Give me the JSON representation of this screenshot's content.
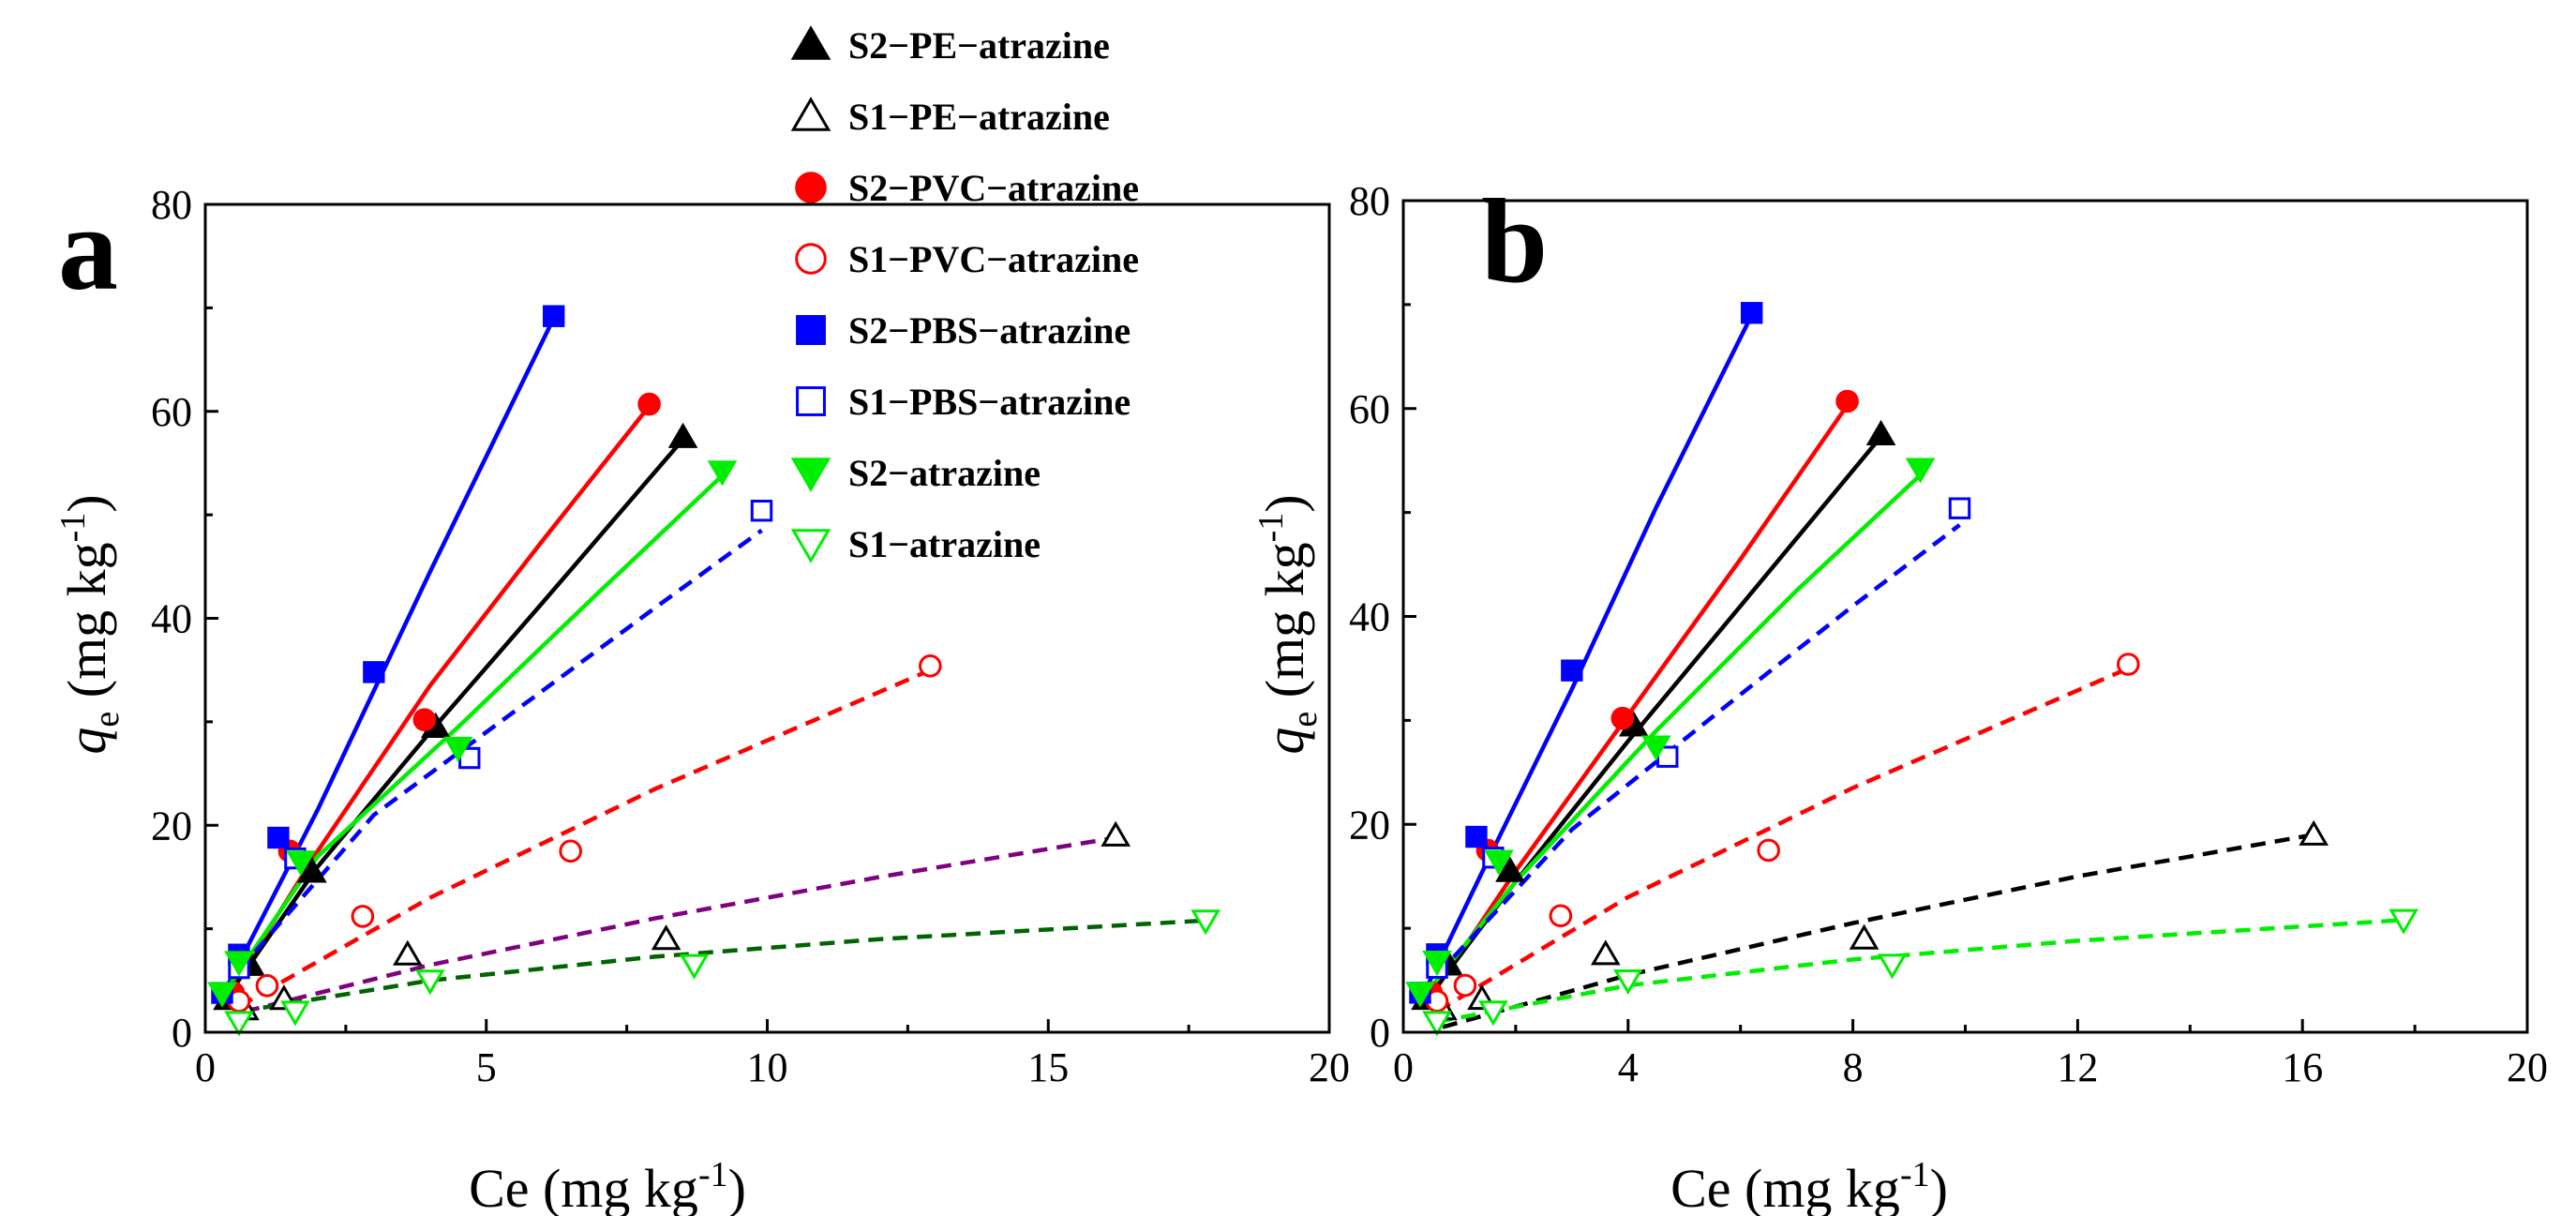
{
  "legend": [
    {
      "label": "S2−PE−atrazine",
      "marker": "triangle-up",
      "filled": true,
      "color": "#000000"
    },
    {
      "label": "S1−PE−atrazine",
      "marker": "triangle-up",
      "filled": false,
      "color": "#000000"
    },
    {
      "label": "S2−PVC−atrazine",
      "marker": "circle",
      "filled": true,
      "color": "#ff0000"
    },
    {
      "label": "S1−PVC−atrazine",
      "marker": "circle",
      "filled": false,
      "color": "#ff0000"
    },
    {
      "label": "S2−PBS−atrazine",
      "marker": "square",
      "filled": true,
      "color": "#0000ff"
    },
    {
      "label": "S1−PBS−atrazine",
      "marker": "square",
      "filled": false,
      "color": "#0000ff"
    },
    {
      "label": "S2−atrazine",
      "marker": "triangle-down",
      "filled": true,
      "color": "#00ee00"
    },
    {
      "label": "S1−atrazine",
      "marker": "triangle-down",
      "filled": false,
      "color": "#00ee00"
    }
  ],
  "chart_data": [
    {
      "type": "scatter",
      "panel": "a",
      "ylabel_italic": "q",
      "ylabel_sub": "e",
      "ylabel_rest": " (mg kg",
      "ylabel_sup": "-1",
      "ylabel_close": ")",
      "xlabel_main": "Ce (mg kg",
      "xlabel_sup": "-1",
      "xlabel_close": ")",
      "xlim": [
        0,
        20
      ],
      "ylim": [
        0,
        80
      ],
      "xticks": [
        0,
        5,
        10,
        15,
        20
      ],
      "xtick_labels": [
        "0",
        "5",
        "10",
        "15",
        "20"
      ],
      "yticks": [
        0,
        20,
        40,
        60,
        80
      ],
      "ytick_labels": [
        "0",
        "20",
        "40",
        "60",
        "80"
      ],
      "grid": false,
      "series": [
        {
          "name": "S2−PE−atrazine",
          "points": [
            [
              0.4,
              3.2
            ],
            [
              0.8,
              6.5
            ],
            [
              1.9,
              15.5
            ],
            [
              4.1,
              29.5
            ],
            [
              8.5,
              57.5
            ]
          ]
        },
        {
          "name": "S1−PE−atrazine",
          "points": [
            [
              0.7,
              2.2
            ],
            [
              1.4,
              3.2
            ],
            [
              3.6,
              7.5
            ],
            [
              8.2,
              9.0
            ],
            [
              16.2,
              19.0
            ]
          ]
        },
        {
          "name": "S2−PVC−atrazine",
          "points": [
            [
              0.5,
              3.8
            ],
            [
              1.5,
              17.5
            ],
            [
              3.9,
              30.2
            ],
            [
              7.9,
              60.7
            ]
          ]
        },
        {
          "name": "S1−PVC−atrazine",
          "points": [
            [
              0.6,
              3.0
            ],
            [
              1.1,
              4.5
            ],
            [
              2.8,
              11.2
            ],
            [
              6.5,
              17.5
            ],
            [
              12.9,
              35.4
            ]
          ]
        },
        {
          "name": "S2−PBS−atrazine",
          "points": [
            [
              0.3,
              3.8
            ],
            [
              0.6,
              7.5
            ],
            [
              1.3,
              18.8
            ],
            [
              3.0,
              34.8
            ],
            [
              6.2,
              69.2
            ]
          ]
        },
        {
          "name": "S1−PBS−atrazine",
          "points": [
            [
              0.6,
              6.2
            ],
            [
              1.6,
              16.8
            ],
            [
              4.7,
              26.5
            ],
            [
              9.9,
              50.4
            ]
          ]
        },
        {
          "name": "S2−atrazine",
          "points": [
            [
              0.3,
              3.8
            ],
            [
              0.6,
              6.8
            ],
            [
              1.7,
              16.5
            ],
            [
              4.5,
              27.5
            ],
            [
              9.2,
              54.2
            ]
          ]
        },
        {
          "name": "S1−atrazine",
          "points": [
            [
              0.6,
              1.0
            ],
            [
              1.6,
              2.0
            ],
            [
              4.0,
              5.0
            ],
            [
              8.7,
              6.5
            ],
            [
              17.8,
              10.8
            ]
          ]
        }
      ],
      "fits": [
        {
          "series": "S2−PBS−atrazine",
          "style": "solid",
          "color": "#0000ff",
          "points": [
            [
              0.3,
              3.5
            ],
            [
              2.0,
              21.5
            ],
            [
              4.0,
              44.5
            ],
            [
              6.2,
              69.0
            ]
          ]
        },
        {
          "series": "S2−PVC−atrazine",
          "style": "solid",
          "color": "#ff0000",
          "points": [
            [
              0.5,
              4.5
            ],
            [
              2.0,
              17.5
            ],
            [
              4.0,
              33.5
            ],
            [
              6.0,
              47.5
            ],
            [
              7.9,
              60.5
            ]
          ]
        },
        {
          "series": "S2−PE−atrazine",
          "style": "solid",
          "color": "#000000",
          "points": [
            [
              0.4,
              3.5
            ],
            [
              2.0,
              16.0
            ],
            [
              4.0,
              29.0
            ],
            [
              6.0,
              41.5
            ],
            [
              8.5,
              57.3
            ]
          ]
        },
        {
          "series": "S2−atrazine",
          "style": "solid",
          "color": "#00ee00",
          "points": [
            [
              0.3,
              3.5
            ],
            [
              2.0,
              17.0
            ],
            [
              4.5,
              29.5
            ],
            [
              7.0,
              42.5
            ],
            [
              9.2,
              53.8
            ]
          ]
        },
        {
          "series": "S1−PBS−atrazine",
          "style": "dashed",
          "color": "#0000ff",
          "points": [
            [
              0.6,
              6.0
            ],
            [
              3.0,
              21.0
            ],
            [
              6.0,
              33.0
            ],
            [
              8.0,
              41.0
            ],
            [
              9.9,
              48.5
            ]
          ]
        },
        {
          "series": "S1−PVC−atrazine",
          "style": "dashed",
          "color": "#ff0000",
          "points": [
            [
              0.6,
              2.5
            ],
            [
              4.0,
              13.0
            ],
            [
              8.0,
              23.5
            ],
            [
              12.9,
              35.0
            ]
          ]
        },
        {
          "series": "S1−PE−atrazine",
          "style": "dashed",
          "color": "#800080",
          "points": [
            [
              0.7,
              2.0
            ],
            [
              4.0,
              6.5
            ],
            [
              8.0,
              11.0
            ],
            [
              12.0,
              15.0
            ],
            [
              16.2,
              18.8
            ]
          ]
        },
        {
          "series": "S1−atrazine",
          "style": "dashed",
          "color": "#006400",
          "points": [
            [
              0.6,
              2.0
            ],
            [
              4.0,
              5.0
            ],
            [
              8.0,
              7.3
            ],
            [
              12.0,
              9.0
            ],
            [
              17.8,
              10.8
            ]
          ]
        }
      ]
    },
    {
      "type": "scatter",
      "panel": "b",
      "ylabel_italic": "q",
      "ylabel_sub": "e",
      "ylabel_rest": " (mg kg",
      "ylabel_sup": "-1",
      "ylabel_close": ")",
      "xlabel_main": "Ce (mg kg",
      "xlabel_sup": "-1",
      "xlabel_close": ")",
      "xlim": [
        0,
        20
      ],
      "ylim": [
        0,
        80
      ],
      "xticks": [
        0,
        4,
        8,
        12,
        16,
        20
      ],
      "xtick_labels": [
        "0",
        "4",
        "8",
        "12",
        "16",
        "20"
      ],
      "yticks": [
        0,
        20,
        40,
        60,
        80
      ],
      "ytick_labels": [
        "0",
        "20",
        "40",
        "60",
        "80"
      ],
      "grid": false,
      "series": [
        {
          "name": "S2−PE−atrazine",
          "points": [
            [
              0.4,
              3.2
            ],
            [
              0.8,
              6.5
            ],
            [
              1.9,
              15.5
            ],
            [
              4.1,
              29.5
            ],
            [
              8.5,
              57.5
            ]
          ]
        },
        {
          "name": "S1−PE−atrazine",
          "points": [
            [
              0.7,
              2.2
            ],
            [
              1.4,
              3.2
            ],
            [
              3.6,
              7.5
            ],
            [
              8.2,
              9.0
            ],
            [
              16.2,
              19.0
            ]
          ]
        },
        {
          "name": "S2−PVC−atrazine",
          "points": [
            [
              0.5,
              3.8
            ],
            [
              1.5,
              17.5
            ],
            [
              3.9,
              30.2
            ],
            [
              7.9,
              60.7
            ]
          ]
        },
        {
          "name": "S1−PVC−atrazine",
          "points": [
            [
              0.6,
              3.0
            ],
            [
              1.1,
              4.5
            ],
            [
              2.8,
              11.2
            ],
            [
              6.5,
              17.5
            ],
            [
              12.9,
              35.4
            ]
          ]
        },
        {
          "name": "S2−PBS−atrazine",
          "points": [
            [
              0.3,
              3.8
            ],
            [
              0.6,
              7.5
            ],
            [
              1.3,
              18.8
            ],
            [
              3.0,
              34.8
            ],
            [
              6.2,
              69.2
            ]
          ]
        },
        {
          "name": "S1−PBS−atrazine",
          "points": [
            [
              0.6,
              6.2
            ],
            [
              1.6,
              16.8
            ],
            [
              4.7,
              26.5
            ],
            [
              9.9,
              50.4
            ]
          ]
        },
        {
          "name": "S2−atrazine",
          "points": [
            [
              0.3,
              3.8
            ],
            [
              0.6,
              6.8
            ],
            [
              1.7,
              16.5
            ],
            [
              4.5,
              27.5
            ],
            [
              9.2,
              54.2
            ]
          ]
        },
        {
          "name": "S1−atrazine",
          "points": [
            [
              0.6,
              1.0
            ],
            [
              1.6,
              2.0
            ],
            [
              4.0,
              5.0
            ],
            [
              8.7,
              6.5
            ],
            [
              17.8,
              10.8
            ]
          ]
        }
      ],
      "fits": [
        {
          "series": "S2−PBS−atrazine",
          "style": "solid",
          "color": "#0000ff",
          "points": [
            [
              0.3,
              3.0
            ],
            [
              1.5,
              16.5
            ],
            [
              3.0,
              33.0
            ],
            [
              4.5,
              50.5
            ],
            [
              6.2,
              69.0
            ]
          ]
        },
        {
          "series": "S2−PVC−atrazine",
          "style": "solid",
          "color": "#ff0000",
          "points": [
            [
              0.5,
              3.5
            ],
            [
              2.0,
              15.5
            ],
            [
              4.0,
              30.5
            ],
            [
              6.0,
              45.5
            ],
            [
              7.9,
              60.3
            ]
          ]
        },
        {
          "series": "S2−PE−atrazine",
          "style": "solid",
          "color": "#000000",
          "points": [
            [
              0.4,
              3.0
            ],
            [
              2.0,
              14.5
            ],
            [
              4.0,
              28.0
            ],
            [
              6.0,
              41.0
            ],
            [
              8.5,
              57.3
            ]
          ]
        },
        {
          "series": "S2−atrazine",
          "style": "solid",
          "color": "#00ee00",
          "points": [
            [
              0.3,
              3.0
            ],
            [
              2.0,
              14.5
            ],
            [
              4.5,
              29.0
            ],
            [
              7.0,
              42.5
            ],
            [
              9.2,
              53.6
            ]
          ]
        },
        {
          "series": "S1−PBS−atrazine",
          "style": "dashed",
          "color": "#0000ff",
          "points": [
            [
              0.6,
              5.5
            ],
            [
              3.0,
              19.5
            ],
            [
              6.0,
              32.5
            ],
            [
              8.0,
              41.0
            ],
            [
              9.9,
              48.8
            ]
          ]
        },
        {
          "series": "S1−PVC−atrazine",
          "style": "dashed",
          "color": "#ff0000",
          "points": [
            [
              0.6,
              2.0
            ],
            [
              4.0,
              13.0
            ],
            [
              8.0,
              23.5
            ],
            [
              12.9,
              35.0
            ]
          ]
        },
        {
          "series": "S1−PE−atrazine",
          "style": "dashed",
          "color": "#000000",
          "points": [
            [
              0.7,
              0.5
            ],
            [
              4.0,
              5.5
            ],
            [
              8.0,
              10.5
            ],
            [
              12.0,
              15.0
            ],
            [
              16.2,
              19.0
            ]
          ]
        },
        {
          "series": "S1−atrazine",
          "style": "dashed",
          "color": "#00ee00",
          "points": [
            [
              0.6,
              1.0
            ],
            [
              4.0,
              4.5
            ],
            [
              8.0,
              7.0
            ],
            [
              12.0,
              8.8
            ],
            [
              17.8,
              10.8
            ]
          ]
        }
      ]
    }
  ]
}
